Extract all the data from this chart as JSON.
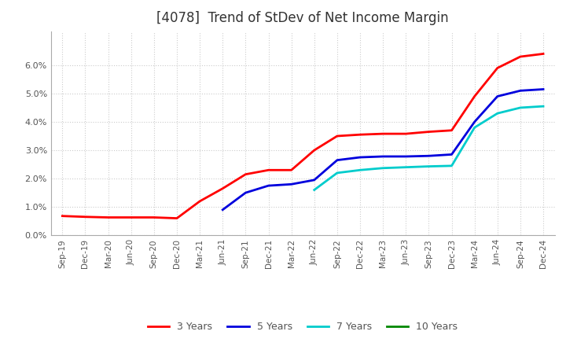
{
  "title": "[4078]  Trend of StDev of Net Income Margin",
  "title_fontsize": 12,
  "background_color": "#ffffff",
  "ylim": [
    0.0,
    0.072
  ],
  "ytick_values": [
    0.0,
    0.01,
    0.02,
    0.03,
    0.04,
    0.05,
    0.06
  ],
  "xtick_labels": [
    "Sep-19",
    "Dec-19",
    "Mar-20",
    "Jun-20",
    "Sep-20",
    "Dec-20",
    "Mar-21",
    "Jun-21",
    "Sep-21",
    "Dec-21",
    "Mar-22",
    "Jun-22",
    "Sep-22",
    "Dec-22",
    "Mar-23",
    "Jun-23",
    "Sep-23",
    "Dec-23",
    "Mar-24",
    "Jun-24",
    "Sep-24",
    "Dec-24"
  ],
  "y_3y": [
    0.0068,
    0.0065,
    0.0063,
    0.0063,
    0.0063,
    0.006,
    0.012,
    0.0165,
    0.0215,
    0.023,
    0.023,
    0.03,
    0.035,
    0.0355,
    0.0358,
    0.0358,
    0.0365,
    0.037,
    0.049,
    0.059,
    0.063,
    0.064
  ],
  "y_5y": [
    null,
    null,
    null,
    null,
    null,
    null,
    null,
    0.009,
    0.015,
    0.0175,
    0.018,
    0.0195,
    0.0265,
    0.0275,
    0.0278,
    0.0278,
    0.028,
    0.0285,
    0.04,
    0.049,
    0.051,
    0.0515
  ],
  "y_7y": [
    null,
    null,
    null,
    null,
    null,
    null,
    null,
    null,
    null,
    null,
    null,
    0.016,
    0.022,
    0.023,
    0.0237,
    0.024,
    0.0243,
    0.0245,
    0.038,
    0.043,
    0.045,
    0.0455
  ],
  "y_10y": [
    null,
    null,
    null,
    null,
    null,
    null,
    null,
    null,
    null,
    null,
    null,
    null,
    null,
    null,
    null,
    null,
    null,
    null,
    null,
    null,
    null,
    null
  ],
  "color_3y": "#ff0000",
  "color_5y": "#0000dd",
  "color_7y": "#00cccc",
  "color_10y": "#008800",
  "legend_labels": [
    "3 Years",
    "5 Years",
    "7 Years",
    "10 Years"
  ],
  "linewidth": 2.0,
  "grid_color": "#cccccc",
  "tick_label_color": "#555555",
  "title_color": "#333333"
}
